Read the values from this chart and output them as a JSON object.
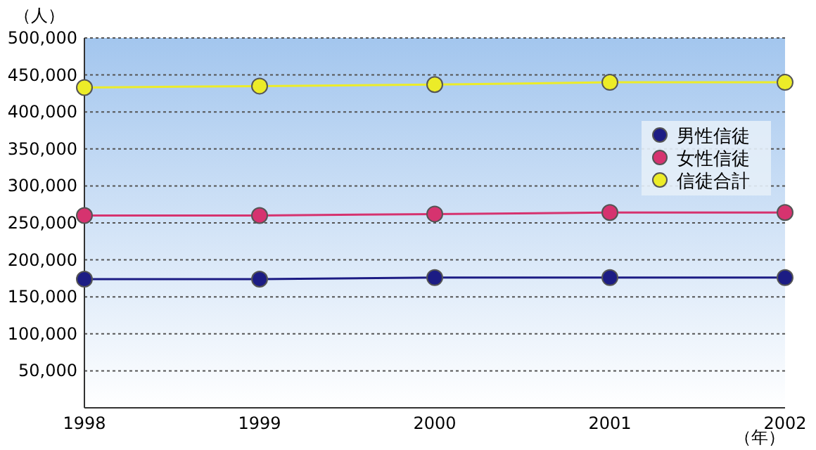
{
  "chart_data": {
    "type": "line",
    "xlabel": "（年）",
    "ylabel": "（人）",
    "x": [
      1998,
      1999,
      2000,
      2001,
      2002
    ],
    "series": [
      {
        "name": "男性信徒",
        "color": "#1c1c84",
        "values": [
          174000,
          174000,
          176000,
          176000,
          176000
        ]
      },
      {
        "name": "女性信徒",
        "color": "#d6336f",
        "values": [
          260000,
          260000,
          262000,
          264000,
          264000
        ]
      },
      {
        "name": "信徒合計",
        "color": "#ecec28",
        "values": [
          433000,
          435000,
          437000,
          440000,
          440000
        ]
      }
    ],
    "xlim": [
      1998,
      2002
    ],
    "xticks": [
      1998,
      1999,
      2000,
      2001,
      2002
    ],
    "ylim": [
      0,
      500000
    ],
    "yticks": [
      {
        "value": 50000,
        "label": "50,000"
      },
      {
        "value": 100000,
        "label": "100,000"
      },
      {
        "value": 150000,
        "label": "150,000"
      },
      {
        "value": 200000,
        "label": "200,000"
      },
      {
        "value": 250000,
        "label": "250,000"
      },
      {
        "value": 300000,
        "label": "300,000"
      },
      {
        "value": 350000,
        "label": "350,000"
      },
      {
        "value": 400000,
        "label": "400,000"
      },
      {
        "value": 450000,
        "label": "450,000"
      },
      {
        "value": 500000,
        "label": "500,000"
      }
    ],
    "grid": "y",
    "legend": "right",
    "marker": "circle",
    "line_style": "solid"
  }
}
